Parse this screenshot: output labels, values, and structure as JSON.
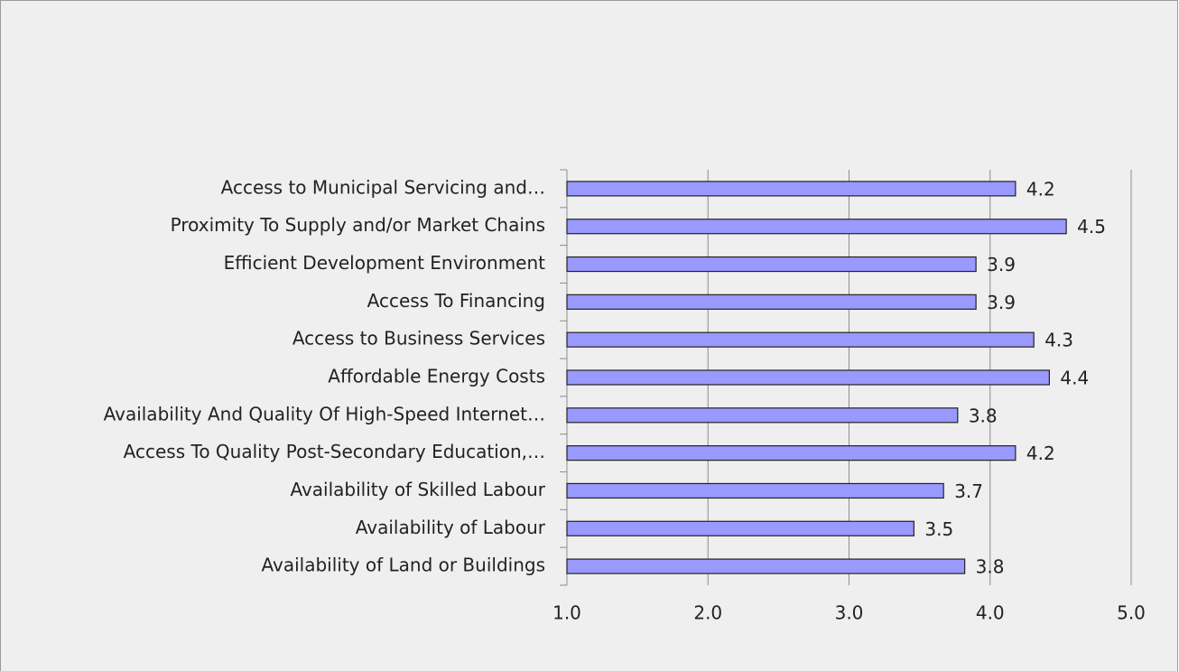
{
  "chart_data": {
    "type": "hbar",
    "categories": [
      "Access to Municipal Servicing and…",
      "Proximity To Supply and/or Market Chains",
      "Efficient Development Environment",
      "Access To Financing",
      "Access to Business Services",
      "Affordable Energy Costs",
      "Availability And Quality Of High-Speed Internet…",
      "Access To Quality Post-Secondary Education,…",
      "Availability of Skilled Labour",
      "Availability of Labour",
      "Availability of Land or Buildings"
    ],
    "values": [
      4.18,
      4.54,
      3.9,
      3.9,
      4.31,
      4.42,
      3.77,
      4.18,
      3.67,
      3.46,
      3.82
    ],
    "value_labels": [
      "4.2",
      "4.5",
      "3.9",
      "3.9",
      "4.3",
      "4.4",
      "3.8",
      "4.2",
      "3.7",
      "3.5",
      "3.8"
    ],
    "color": "#9999ff",
    "xlim": [
      1,
      5
    ],
    "xticks": [
      {
        "value": 1,
        "label": "1.0"
      },
      {
        "value": 2,
        "label": "2.0"
      },
      {
        "value": 3,
        "label": "3.0"
      },
      {
        "value": 4,
        "label": "4.0"
      },
      {
        "value": 5,
        "label": "5.0"
      }
    ],
    "grid": true
  }
}
